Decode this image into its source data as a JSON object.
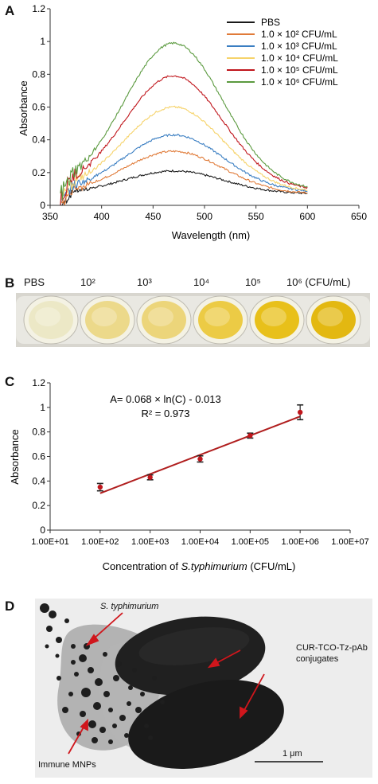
{
  "panels": {
    "a": "A",
    "b": "B",
    "c": "C",
    "d": "D"
  },
  "chart_data": [
    {
      "type": "line",
      "xlabel": "Wavelength (nm)",
      "ylabel": "Absorbance",
      "xlim": [
        350,
        650
      ],
      "ylim": [
        0,
        1.2
      ],
      "xticks": [
        "350",
        "400",
        "450",
        "500",
        "550",
        "600",
        "650"
      ],
      "yticks": [
        "0",
        "0.2",
        "0.4",
        "0.6",
        "0.8",
        "1",
        "1.2"
      ],
      "legend_position": "top-right",
      "x_range_data": [
        360,
        600
      ],
      "series": [
        {
          "name": "PBS",
          "color": "#1a1a1a",
          "peak": 0.21,
          "end": 0.07
        },
        {
          "name": "1.0 × 10² CFU/mL",
          "color": "#e07b39",
          "peak": 0.33,
          "end": 0.07
        },
        {
          "name": "1.0 × 10³ CFU/mL",
          "color": "#3a7ec2",
          "peak": 0.43,
          "end": 0.08
        },
        {
          "name": "1.0 × 10⁴ CFU/mL",
          "color": "#f6d36a",
          "peak": 0.6,
          "end": 0.08
        },
        {
          "name": "1.0 × 10⁵ CFU/mL",
          "color": "#c0161c",
          "peak": 0.79,
          "end": 0.09
        },
        {
          "name": "1.0 × 10⁶ CFU/mL",
          "color": "#5b9a3f",
          "peak": 0.99,
          "end": 0.09
        }
      ],
      "peak_wavelength": 470
    },
    {
      "type": "scatter",
      "xlabel_prefix": "Concentration of ",
      "xlabel_italic": "S.typhimurium",
      "xlabel_suffix": " (CFU/mL)",
      "ylabel": "Absorbance",
      "x_scale": "log",
      "xlim": [
        10,
        10000000
      ],
      "ylim": [
        0,
        1.2
      ],
      "xticks": [
        "1.00E+01",
        "1.00E+02",
        "1.00E+03",
        "1.00E+04",
        "1.00E+05",
        "1.00E+06",
        "1.00E+07"
      ],
      "yticks": [
        "0",
        "0.2",
        "0.4",
        "0.6",
        "0.8",
        "1",
        "1.2"
      ],
      "points": [
        {
          "x": 100,
          "y": 0.35,
          "err": 0.03
        },
        {
          "x": 1000,
          "y": 0.43,
          "err": 0.02
        },
        {
          "x": 10000,
          "y": 0.58,
          "err": 0.025
        },
        {
          "x": 100000,
          "y": 0.77,
          "err": 0.02
        },
        {
          "x": 1000000,
          "y": 0.96,
          "err": 0.06
        }
      ],
      "point_color": "#c0161c",
      "fit": {
        "slope": 0.068,
        "intercept": -0.013,
        "color": "#b01e1e"
      },
      "equation": "A= 0.068 × ln(C) - 0.013",
      "r2": "R² = 0.973"
    }
  ],
  "wells": {
    "labels": [
      "PBS",
      "10²",
      "10³",
      "10⁴",
      "10⁵",
      "10⁶ (CFU/mL)"
    ],
    "colors": [
      "#ece8c6",
      "#ecd98a",
      "#ecd57a",
      "#eccb45",
      "#e8c01a",
      "#e3b811"
    ]
  },
  "tem": {
    "label_bacteria": "S. typhimurium",
    "label_conjugates_1": "CUR-TCO-Tz-pAb",
    "label_conjugates_2": "conjugates",
    "label_mnps": "Immune MNPs",
    "scale": "1 μm"
  }
}
